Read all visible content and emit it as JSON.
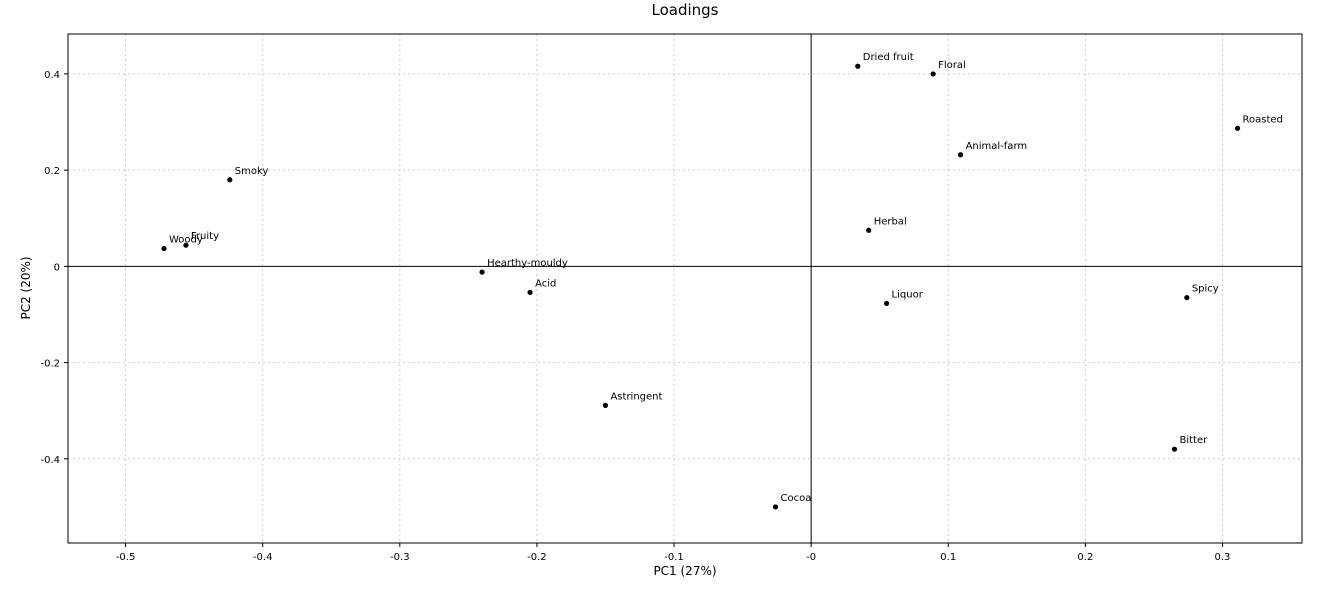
{
  "chart_data": {
    "type": "scatter",
    "title": "Loadings",
    "xlabel": "PC1 (27%)",
    "ylabel": "PC2 (20%)",
    "xlim": [
      -0.542,
      0.358
    ],
    "ylim": [
      -0.575,
      0.483
    ],
    "grid": true,
    "zero_lines": true,
    "x_ticks": [
      -0.5,
      -0.4,
      -0.3,
      -0.2,
      -0.1,
      0,
      0.1,
      0.2,
      0.3
    ],
    "x_tick_labels": [
      "-0.5",
      "-0.4",
      "-0.3",
      "-0.2",
      "-0.1",
      "-0",
      "0.1",
      "0.2",
      "0.3"
    ],
    "y_ticks": [
      -0.4,
      -0.2,
      0,
      0.2,
      0.4
    ],
    "y_tick_labels": [
      "-0.4",
      "-0.2",
      "0",
      "0.2",
      "0.4"
    ],
    "marker_color": "#000000",
    "points": [
      {
        "label": "Dried fruit",
        "x": 0.034,
        "y": 0.416
      },
      {
        "label": "Floral",
        "x": 0.089,
        "y": 0.4
      },
      {
        "label": "Roasted",
        "x": 0.311,
        "y": 0.287
      },
      {
        "label": "Animal-farm",
        "x": 0.109,
        "y": 0.232
      },
      {
        "label": "Smoky",
        "x": -0.424,
        "y": 0.18
      },
      {
        "label": "Herbal",
        "x": 0.042,
        "y": 0.075
      },
      {
        "label": "Woody",
        "x": -0.472,
        "y": 0.037
      },
      {
        "label": "Fruity",
        "x": -0.456,
        "y": 0.044
      },
      {
        "label": "Hearthy-mouldy",
        "x": -0.24,
        "y": -0.012
      },
      {
        "label": "Acid",
        "x": -0.205,
        "y": -0.054
      },
      {
        "label": "Liquor",
        "x": 0.055,
        "y": -0.077
      },
      {
        "label": "Spicy",
        "x": 0.274,
        "y": -0.065
      },
      {
        "label": "Astringent",
        "x": -0.15,
        "y": -0.289
      },
      {
        "label": "Bitter",
        "x": 0.265,
        "y": -0.38
      },
      {
        "label": "Cocoa",
        "x": -0.026,
        "y": -0.5
      }
    ]
  }
}
